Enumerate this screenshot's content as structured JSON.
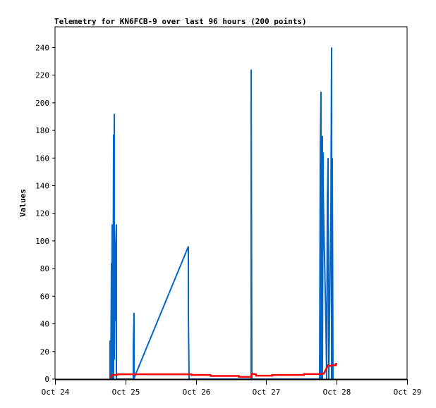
{
  "chart_data": {
    "type": "line",
    "title": "Telemetry for KN6FCB-9 over last 96 hours (200 points)",
    "xlabel": "",
    "ylabel": "Values",
    "xlim": [
      "Oct 24 00:00",
      "Oct 29 00:00"
    ],
    "ylim": [
      0,
      255
    ],
    "x_ticks": [
      "Oct 24",
      "Oct 25",
      "Oct 26",
      "Oct 27",
      "Oct 28",
      "Oct 29"
    ],
    "y_ticks": [
      0,
      20,
      40,
      60,
      80,
      100,
      120,
      140,
      160,
      180,
      200,
      220,
      240
    ],
    "grid": false,
    "legend": "none",
    "series": [
      {
        "color": "#0066cc",
        "points": [
          [
            "Oct 24 18:46",
            0
          ],
          [
            "Oct 24 18:46",
            28
          ],
          [
            "Oct 24 19:00",
            0
          ],
          [
            "Oct 24 19:14",
            84
          ],
          [
            "Oct 24 19:14",
            0
          ],
          [
            "Oct 24 19:29",
            112
          ],
          [
            "Oct 24 19:29",
            0
          ],
          [
            "Oct 24 19:43",
            0
          ],
          [
            "Oct 24 19:58",
            177
          ],
          [
            "Oct 24 19:58",
            0
          ],
          [
            "Oct 24 20:12",
            192
          ],
          [
            "Oct 24 20:12",
            14
          ],
          [
            "Oct 24 20:27",
            70
          ],
          [
            "Oct 24 20:27",
            42
          ],
          [
            "Oct 24 20:41",
            98
          ],
          [
            "Oct 24 20:55",
            112
          ],
          [
            "Oct 24 20:55",
            0
          ],
          [
            "Oct 24 21:10",
            0
          ],
          [
            "Oct 25 02:42",
            0
          ],
          [
            "Oct 25 02:42",
            25
          ],
          [
            "Oct 25 02:56",
            48
          ],
          [
            "Oct 25 02:56",
            0
          ],
          [
            "Oct 25 03:10",
            2
          ],
          [
            "Oct 25 21:27",
            96
          ],
          [
            "Oct 25 21:27",
            48
          ],
          [
            "Oct 25 21:41",
            0
          ],
          [
            "Oct 26 18:51",
            0
          ],
          [
            "Oct 26 18:51",
            224
          ],
          [
            "Oct 26 19:06",
            0
          ],
          [
            "Oct 27 18:11",
            0
          ],
          [
            "Oct 27 18:25",
            167
          ],
          [
            "Oct 27 18:40",
            208
          ],
          [
            "Oct 27 18:40",
            0
          ],
          [
            "Oct 27 18:54",
            72
          ],
          [
            "Oct 27 19:08",
            176
          ],
          [
            "Oct 27 19:08",
            0
          ],
          [
            "Oct 27 19:23",
            164
          ],
          [
            "Oct 27 19:23",
            140
          ],
          [
            "Oct 27 19:37",
            112
          ],
          [
            "Oct 27 19:52",
            88
          ],
          [
            "Oct 27 20:06",
            63
          ],
          [
            "Oct 27 20:20",
            38
          ],
          [
            "Oct 27 20:35",
            0
          ],
          [
            "Oct 27 20:49",
            128
          ],
          [
            "Oct 27 21:04",
            160
          ],
          [
            "Oct 27 21:18",
            0
          ],
          [
            "Oct 27 22:01",
            120
          ],
          [
            "Oct 27 22:16",
            240
          ],
          [
            "Oct 27 22:16",
            0
          ],
          [
            "Oct 27 22:30",
            160
          ],
          [
            "Oct 27 22:45",
            0
          ]
        ]
      },
      {
        "color": "#ff0000",
        "points": [
          [
            "Oct 24 18:46",
            1
          ],
          [
            "Oct 24 19:29",
            3
          ],
          [
            "Oct 24 21:10",
            3
          ],
          [
            "Oct 24 21:10",
            3.5
          ],
          [
            "Oct 25 22:30",
            3.5
          ],
          [
            "Oct 25 22:30",
            3
          ],
          [
            "Oct 26 05:00",
            3
          ],
          [
            "Oct 26 05:00",
            2.3
          ],
          [
            "Oct 26 14:40",
            2.3
          ],
          [
            "Oct 26 14:40",
            1.6
          ],
          [
            "Oct 26 18:51",
            1.6
          ],
          [
            "Oct 26 19:06",
            3.8
          ],
          [
            "Oct 26 20:30",
            3.5
          ],
          [
            "Oct 26 20:30",
            2.5
          ],
          [
            "Oct 27 02:00",
            2.5
          ],
          [
            "Oct 27 02:00",
            3
          ],
          [
            "Oct 27 12:50",
            3
          ],
          [
            "Oct 27 12:50",
            3.6
          ],
          [
            "Oct 27 18:11",
            3.6
          ],
          [
            "Oct 27 19:37",
            4
          ],
          [
            "Oct 27 20:06",
            6
          ],
          [
            "Oct 27 20:35",
            8
          ],
          [
            "Oct 27 21:04",
            10
          ],
          [
            "Oct 27 22:01",
            9.5
          ],
          [
            "Oct 27 22:30",
            10
          ],
          [
            "Oct 27 23:40",
            10
          ],
          [
            "Oct 27 23:40",
            11
          ],
          [
            "Oct 28 00:10",
            11
          ]
        ]
      }
    ]
  }
}
